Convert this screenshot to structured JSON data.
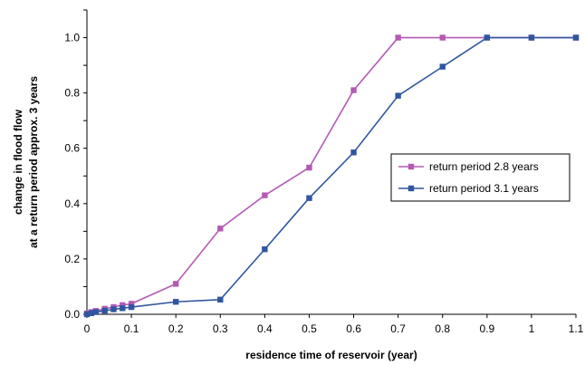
{
  "chart_data": {
    "type": "line",
    "xlabel": "residence time of reservoir (year)",
    "ylabel_lines": [
      "change in flood flow",
      "at a return period approx. 3 years"
    ],
    "xlim": [
      0,
      1.1
    ],
    "ylim": [
      0,
      1.1
    ],
    "x_ticks": [
      "0",
      "0.1",
      "0.2",
      "0.3",
      "0.4",
      "0.5",
      "0.6",
      "0.7",
      "0.8",
      "0.9",
      "1",
      "1.1"
    ],
    "y_ticks": [
      "0.0",
      "0.2",
      "0.4",
      "0.6",
      "0.8",
      "1.0"
    ],
    "grid": false,
    "legend_position": "right",
    "series": [
      {
        "name": "return period 2.8 years",
        "color": "#B45AB4",
        "marker": "square",
        "points": [
          [
            0,
            0.003
          ],
          [
            0.01,
            0.008
          ],
          [
            0.02,
            0.012
          ],
          [
            0.04,
            0.02
          ],
          [
            0.06,
            0.026
          ],
          [
            0.08,
            0.033
          ],
          [
            0.1,
            0.038
          ],
          [
            0.2,
            0.11
          ],
          [
            0.3,
            0.31
          ],
          [
            0.4,
            0.43
          ],
          [
            0.5,
            0.53
          ],
          [
            0.6,
            0.81
          ],
          [
            0.7,
            1.0
          ],
          [
            0.8,
            1.0
          ],
          [
            0.9,
            1.0
          ],
          [
            1.0,
            1.0
          ],
          [
            1.1,
            1.0
          ]
        ]
      },
      {
        "name": "return period 3.1 years",
        "color": "#2F56A0",
        "marker": "square",
        "points": [
          [
            0,
            0.0
          ],
          [
            0.01,
            0.004
          ],
          [
            0.02,
            0.008
          ],
          [
            0.04,
            0.013
          ],
          [
            0.06,
            0.018
          ],
          [
            0.08,
            0.022
          ],
          [
            0.1,
            0.026
          ],
          [
            0.2,
            0.045
          ],
          [
            0.3,
            0.053
          ],
          [
            0.4,
            0.235
          ],
          [
            0.5,
            0.42
          ],
          [
            0.6,
            0.585
          ],
          [
            0.7,
            0.79
          ],
          [
            0.8,
            0.895
          ],
          [
            0.9,
            1.0
          ],
          [
            1.0,
            1.0
          ],
          [
            1.1,
            1.0
          ]
        ]
      }
    ]
  }
}
